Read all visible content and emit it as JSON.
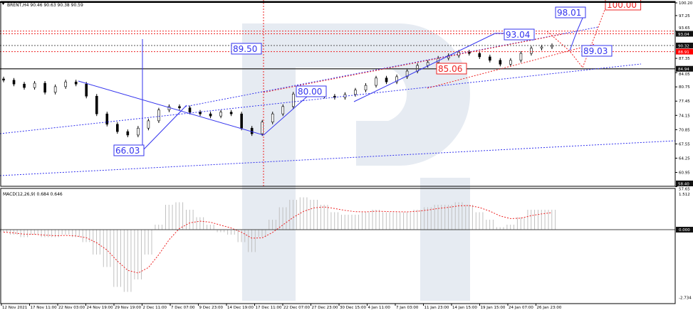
{
  "header": {
    "symbol_info": "BRENT,H4  90.46 90.63 90.38 90.59"
  },
  "macd_header": {
    "label": "MACD(12,26,9) 0.684 0.646"
  },
  "colors": {
    "up_trend": "#3333ee",
    "forecast": "#ee2222",
    "candle": "#000000",
    "macd_hist": "#c0c0c0",
    "macd_signal": "#ee2222"
  },
  "chart_data": [
    {
      "type": "candlestick",
      "title": "BRENT,H4",
      "ylim": [
        58.4,
        100.2
      ],
      "x_tick_labels": [
        "12 Nov 2021",
        "17 Nov 11:00",
        "22 Nov 03:00",
        "24 Nov 19:00",
        "29 Nov 19:00",
        "2 Dec 11:00",
        "7 Dec 07:00",
        "9 Dec 23:00",
        "14 Dec 19:00",
        "17 Dec 11:00",
        "22 Dec 07:00",
        "27 Dec 23:00",
        "30 Dec 15:00",
        "4 Jan 11:00",
        "7 Jan 03:00",
        "11 Jan 23:00",
        "14 Jan 15:00",
        "19 Jan 15:00",
        "24 Jan 07:00",
        "26 Jan 23:00"
      ],
      "y_tick_labels": [
        "100.20",
        "97.25",
        "93.65",
        "87.35",
        "84.05",
        "80.75",
        "77.45",
        "74.15",
        "70.85",
        "67.55",
        "64.25",
        "60.95",
        "57.65"
      ],
      "price_markers": [
        {
          "value": "93.04",
          "style": "dark"
        },
        {
          "value": "90.32",
          "style": "dark"
        },
        {
          "value": "88.91",
          "style": "red"
        },
        {
          "value": "84.94",
          "style": "dark"
        },
        {
          "value": "58.40",
          "style": "dark"
        }
      ],
      "closes": [
        82.3,
        81.4,
        80.6,
        81.6,
        79.5,
        80.8,
        81.9,
        81.4,
        78.6,
        74.5,
        72.1,
        70.4,
        69.6,
        71.2,
        72.9,
        75.4,
        76.2,
        75.9,
        74.9,
        74.5,
        74.0,
        74.9,
        74.5,
        71.2,
        69.9,
        72.6,
        74.5,
        76.2,
        79.1,
        79.5,
        79.0,
        78.6,
        78.3,
        79.0,
        80.0,
        81.1,
        82.8,
        81.9,
        83.1,
        84.4,
        85.7,
        86.4,
        87.4,
        88.0,
        88.8,
        88.5,
        87.7,
        86.9,
        86.0,
        86.9,
        88.5,
        89.7,
        90.0,
        90.3
      ],
      "annotations": [
        {
          "text": "66.03",
          "color": "blue"
        },
        {
          "text": "80.00",
          "color": "blue"
        },
        {
          "text": "89.50",
          "color": "blue"
        },
        {
          "text": "93.04",
          "color": "blue"
        },
        {
          "text": "98.01",
          "color": "blue"
        },
        {
          "text": "89.03",
          "color": "blue"
        },
        {
          "text": "85.06",
          "color": "red"
        },
        {
          "text": "100.00",
          "color": "red"
        }
      ]
    },
    {
      "type": "bar",
      "title": "MACD(12,26,9)",
      "ylim": [
        -2.734,
        1.512
      ],
      "y_tick_labels": [
        "1.512",
        "0.000",
        "-2.734"
      ],
      "values": [
        -0.1,
        -0.2,
        -0.3,
        -0.2,
        -0.3,
        -0.3,
        -0.2,
        -0.3,
        -0.5,
        -1.0,
        -1.5,
        -2.3,
        -2.5,
        -2.0,
        -1.0,
        0.2,
        1.0,
        1.1,
        0.8,
        0.5,
        0.2,
        -0.1,
        -0.2,
        -0.5,
        -0.9,
        -0.3,
        0.4,
        0.9,
        1.2,
        1.3,
        1.2,
        1.0,
        0.7,
        0.6,
        0.6,
        0.7,
        0.8,
        0.7,
        0.7,
        0.7,
        0.8,
        0.9,
        1.0,
        1.0,
        1.1,
        1.0,
        0.7,
        0.4,
        0.1,
        0.2,
        0.5,
        0.8,
        0.8,
        0.8
      ]
    }
  ]
}
